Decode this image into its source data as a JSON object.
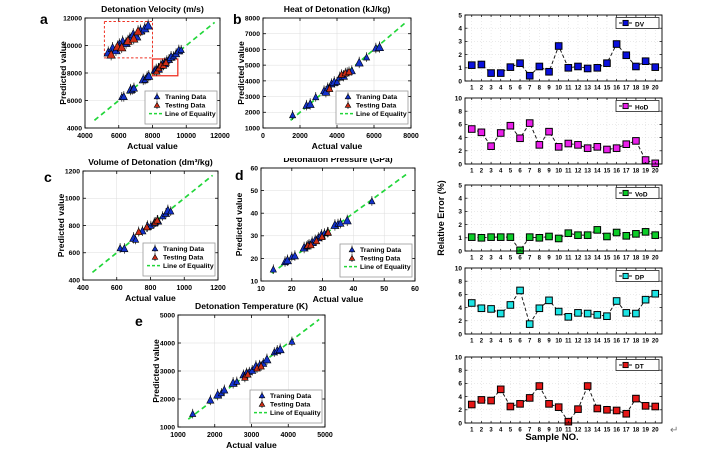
{
  "figure": {
    "background": "#ffffff",
    "shared_ylabel": "Relative Error  (%)",
    "error_xlabel": "Sample NO.",
    "return_mark": "↵"
  },
  "colors": {
    "training": "#1332cc",
    "testing": "#cf2d16",
    "equality": "#22d63a",
    "marker_edge": "#000000",
    "highlight": "#ee3224",
    "grid": "#dcdcdc",
    "axis": "#000000",
    "error_line": "#111111"
  },
  "chart_data": {
    "type": "scatter",
    "scatter_panels": [
      {
        "id": "a",
        "letter": "a",
        "title": "Detonation Velocity (m/s)",
        "xlabel": "Actual value",
        "ylabel": "Predicted value",
        "xlim": [
          4000,
          12000
        ],
        "ylim": [
          4000,
          12000
        ],
        "xticks": [
          4000,
          6000,
          8000,
          10000,
          12000
        ],
        "yticks": [
          4000,
          6000,
          8000,
          10000,
          12000
        ],
        "legend": [
          "Traning Data",
          "Testing Data",
          "Line of Equality"
        ],
        "training": [
          [
            6180,
            6230
          ],
          [
            6300,
            6260
          ],
          [
            6700,
            6760
          ],
          [
            6800,
            6740
          ],
          [
            6900,
            6880
          ],
          [
            7450,
            7500
          ],
          [
            7560,
            7490
          ],
          [
            7680,
            7700
          ],
          [
            7780,
            7760
          ],
          [
            8100,
            8150
          ],
          [
            8220,
            8260
          ],
          [
            8350,
            8280
          ],
          [
            8480,
            8460
          ],
          [
            8600,
            8640
          ],
          [
            8720,
            8680
          ],
          [
            8850,
            8900
          ],
          [
            8980,
            8960
          ],
          [
            9100,
            9150
          ],
          [
            9250,
            9200
          ],
          [
            9400,
            9380
          ],
          [
            9560,
            9610
          ],
          [
            9700,
            9660
          ]
        ],
        "testing": [
          [
            8250,
            8100
          ],
          [
            8380,
            8340
          ],
          [
            8500,
            8550
          ],
          [
            8650,
            8530
          ],
          [
            8800,
            8740
          ]
        ],
        "highlight_box": {
          "x": [
            8000,
            9500
          ],
          "y": [
            7800,
            9020
          ]
        },
        "inset_box": {
          "x": [
            5150,
            8000
          ],
          "y": [
            9100,
            11750
          ],
          "training_rel": [
            [
              0.08,
              0.14
            ],
            [
              0.17,
              0.26
            ],
            [
              0.24,
              0.2
            ],
            [
              0.31,
              0.36
            ],
            [
              0.38,
              0.44
            ],
            [
              0.45,
              0.4
            ],
            [
              0.53,
              0.52
            ],
            [
              0.6,
              0.64
            ],
            [
              0.67,
              0.58
            ],
            [
              0.75,
              0.74
            ],
            [
              0.84,
              0.8
            ],
            [
              0.91,
              0.88
            ]
          ],
          "testing_rel": [
            [
              0.14,
              0.08
            ],
            [
              0.27,
              0.3
            ],
            [
              0.36,
              0.28
            ],
            [
              0.49,
              0.46
            ],
            [
              0.61,
              0.52
            ],
            [
              0.7,
              0.72
            ]
          ]
        }
      },
      {
        "id": "b",
        "letter": "b",
        "title": "Heat of Detonation (kJ/kg)",
        "xlabel": "Actual value",
        "ylabel": "Predicted value",
        "xlim": [
          0,
          8000
        ],
        "ylim": [
          1000,
          8000
        ],
        "xticks": [
          0,
          2000,
          4000,
          6000,
          8000
        ],
        "yticks": [
          1000,
          2000,
          3000,
          4000,
          5000,
          6000,
          7000,
          8000
        ],
        "legend": [
          "Traning Data",
          "Testing Data",
          "Line of Equality"
        ],
        "training": [
          [
            1600,
            1800
          ],
          [
            2350,
            2420
          ],
          [
            2550,
            2500
          ],
          [
            2850,
            2950
          ],
          [
            3300,
            3350
          ],
          [
            3400,
            3280
          ],
          [
            3500,
            3560
          ],
          [
            3700,
            3790
          ],
          [
            3850,
            3900
          ],
          [
            4000,
            3920
          ],
          [
            4150,
            4220
          ],
          [
            4350,
            4300
          ],
          [
            4550,
            4520
          ],
          [
            4800,
            4620
          ],
          [
            5200,
            5140
          ],
          [
            5600,
            5480
          ],
          [
            6100,
            6060
          ],
          [
            6300,
            6120
          ]
        ],
        "testing": [
          [
            3600,
            3480
          ],
          [
            4250,
            4380
          ],
          [
            4450,
            4480
          ],
          [
            4650,
            4560
          ]
        ]
      },
      {
        "id": "c",
        "letter": "c",
        "title": "Volume of Detonation (dm³/kg)",
        "xlabel": "Actual value",
        "ylabel": "Predicted value",
        "xlim": [
          400,
          1200
        ],
        "ylim": [
          400,
          1200
        ],
        "xticks": [
          400,
          600,
          800,
          1000,
          1200
        ],
        "yticks": [
          400,
          600,
          800,
          1000,
          1200
        ],
        "legend": [
          "Traning Data",
          "Testing Data",
          "Line of Equality"
        ],
        "training": [
          [
            620,
            632
          ],
          [
            645,
            628
          ],
          [
            700,
            706
          ],
          [
            712,
            694
          ],
          [
            752,
            758
          ],
          [
            782,
            792
          ],
          [
            802,
            796
          ],
          [
            822,
            816
          ],
          [
            843,
            832
          ],
          [
            872,
            866
          ],
          [
            892,
            886
          ],
          [
            903,
            908
          ],
          [
            920,
            902
          ]
        ],
        "testing": [
          [
            730,
            752
          ],
          [
            778,
            786
          ],
          [
            828,
            822
          ],
          [
            840,
            836
          ]
        ]
      },
      {
        "id": "d",
        "letter": "d",
        "title": "Detonation Pressure (GPa)",
        "xlabel": "Actual value",
        "ylabel": "Predicted value",
        "xlim": [
          10,
          60
        ],
        "ylim": [
          10,
          60
        ],
        "xticks": [
          10,
          20,
          30,
          40,
          50,
          60
        ],
        "yticks": [
          10,
          20,
          30,
          40,
          50,
          60
        ],
        "legend": [
          "Traning Data",
          "Testing Data",
          "Line of Equality"
        ],
        "training": [
          [
            14,
            15
          ],
          [
            17.8,
            18.4
          ],
          [
            18.6,
            19
          ],
          [
            20,
            20.6
          ],
          [
            21,
            21
          ],
          [
            24,
            24.6
          ],
          [
            24.8,
            25.2
          ],
          [
            25.6,
            26
          ],
          [
            26.6,
            27
          ],
          [
            27.6,
            28.2
          ],
          [
            28.6,
            29
          ],
          [
            29.6,
            30.2
          ],
          [
            30.6,
            31
          ],
          [
            31.6,
            31.4
          ],
          [
            34,
            34.6
          ],
          [
            35,
            35.2
          ],
          [
            35.8,
            35.4
          ],
          [
            38,
            36.6
          ],
          [
            46,
            45.2
          ]
        ],
        "testing": [
          [
            25.2,
            25.6
          ],
          [
            26.2,
            25.8
          ],
          [
            28,
            27.6
          ],
          [
            29.8,
            29.4
          ],
          [
            31.8,
            31.4
          ]
        ]
      },
      {
        "id": "e",
        "letter": "e",
        "title": "Detonation Temperature (K)",
        "xlabel": "Actual value",
        "ylabel": "Predicted value",
        "xlim": [
          1000,
          5000
        ],
        "ylim": [
          1000,
          5000
        ],
        "xticks": [
          1000,
          2000,
          3000,
          4000,
          5000
        ],
        "yticks": [
          1000,
          2000,
          3000,
          4000,
          5000
        ],
        "legend": [
          "Traning Data",
          "Testing Data",
          "Line of Equality"
        ],
        "training": [
          [
            1400,
            1460
          ],
          [
            1880,
            1950
          ],
          [
            2080,
            2140
          ],
          [
            2180,
            2200
          ],
          [
            2260,
            2310
          ],
          [
            2500,
            2560
          ],
          [
            2600,
            2610
          ],
          [
            2780,
            2850
          ],
          [
            2860,
            2900
          ],
          [
            2940,
            2960
          ],
          [
            3020,
            3010
          ],
          [
            3120,
            3160
          ],
          [
            3220,
            3210
          ],
          [
            3320,
            3260
          ],
          [
            3420,
            3400
          ],
          [
            3620,
            3660
          ],
          [
            3700,
            3720
          ],
          [
            3780,
            3760
          ],
          [
            4100,
            4040
          ]
        ],
        "testing": [
          [
            2820,
            2760
          ],
          [
            2900,
            2870
          ],
          [
            3150,
            3090
          ],
          [
            3260,
            3160
          ]
        ]
      }
    ],
    "sample_numbers": [
      1,
      2,
      3,
      4,
      5,
      6,
      7,
      8,
      9,
      10,
      11,
      12,
      13,
      14,
      15,
      16,
      17,
      18,
      19,
      20
    ],
    "error_panels": [
      {
        "label": "DV",
        "color": "#0a10dd",
        "ylim": [
          0,
          5
        ],
        "yticks": [
          0,
          1,
          2,
          3,
          4,
          5
        ],
        "values": [
          1.2,
          1.25,
          0.6,
          0.6,
          1.05,
          1.35,
          0.4,
          1.1,
          0.7,
          2.65,
          1.0,
          1.1,
          0.95,
          1.0,
          1.35,
          2.8,
          1.95,
          1.1,
          1.5,
          1.05
        ]
      },
      {
        "label": "HoD",
        "color": "#ea1fea",
        "ylim": [
          0,
          10
        ],
        "yticks": [
          0,
          2,
          4,
          6,
          8,
          10
        ],
        "values": [
          5.3,
          4.8,
          2.7,
          4.7,
          5.8,
          3.9,
          6.2,
          2.9,
          4.9,
          2.6,
          3.1,
          2.9,
          2.4,
          2.6,
          2.2,
          2.4,
          3.0,
          3.5,
          0.6,
          0.1
        ]
      },
      {
        "label": "VoD",
        "color": "#0ccc28",
        "ylim": [
          0,
          5
        ],
        "yticks": [
          0,
          1,
          2,
          3,
          4,
          5
        ],
        "values": [
          1.05,
          1.0,
          1.05,
          1.05,
          1.05,
          0.05,
          1.05,
          1.0,
          1.1,
          0.95,
          1.35,
          1.2,
          1.2,
          1.6,
          1.1,
          1.4,
          1.15,
          1.3,
          1.45,
          1.2
        ]
      },
      {
        "label": "DP",
        "color": "#1ce4e4",
        "ylim": [
          0,
          10
        ],
        "yticks": [
          0,
          2,
          4,
          6,
          8,
          10
        ],
        "values": [
          4.7,
          3.9,
          3.8,
          3.1,
          4.4,
          6.6,
          1.5,
          3.9,
          5.1,
          3.4,
          2.6,
          3.2,
          3.1,
          2.9,
          2.7,
          5.0,
          3.2,
          3.1,
          5.2,
          6.1
        ]
      },
      {
        "label": "DT",
        "color": "#e51616",
        "ylim": [
          0,
          10
        ],
        "yticks": [
          0,
          2,
          4,
          6,
          8,
          10
        ],
        "values": [
          2.8,
          3.5,
          3.4,
          5.1,
          2.5,
          2.9,
          3.8,
          5.6,
          2.9,
          2.4,
          0.2,
          2.1,
          5.6,
          2.2,
          2.0,
          1.9,
          1.4,
          3.7,
          2.6,
          2.5
        ]
      }
    ]
  }
}
